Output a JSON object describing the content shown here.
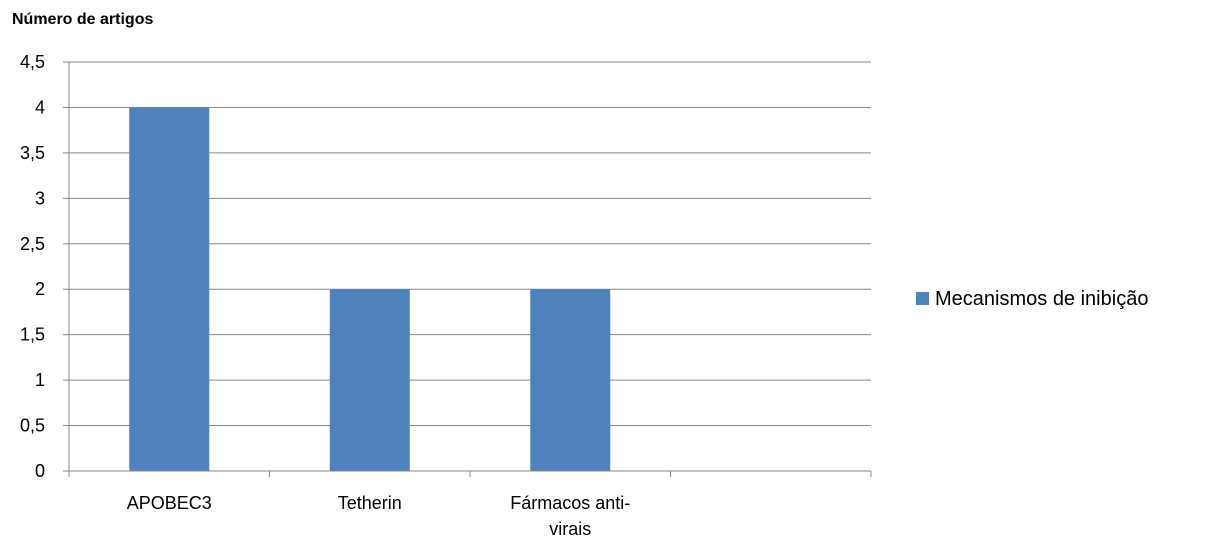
{
  "chart_data": {
    "type": "bar",
    "title": "",
    "xlabel": "",
    "ylabel": "Número de artigos",
    "categories": [
      "APOBEC3",
      "Tetherin",
      "Fármacos anti-virais",
      ""
    ],
    "category_label_lines": [
      [
        "APOBEC3"
      ],
      [
        "Tetherin"
      ],
      [
        "Fármacos anti-",
        "virais"
      ],
      []
    ],
    "series": [
      {
        "name": "Mecanismos de inibição",
        "values": [
          4,
          2,
          2,
          null
        ],
        "color": "#4F81BD"
      }
    ],
    "ylim": [
      0,
      4.5
    ],
    "yticks": [
      "0",
      "0,5",
      "1",
      "1,5",
      "2",
      "2,5",
      "3",
      "3,5",
      "4",
      "4,5"
    ],
    "grid": true,
    "legend_position": "right",
    "colors": {
      "gridline": "#868686",
      "axis": "#868686"
    }
  }
}
